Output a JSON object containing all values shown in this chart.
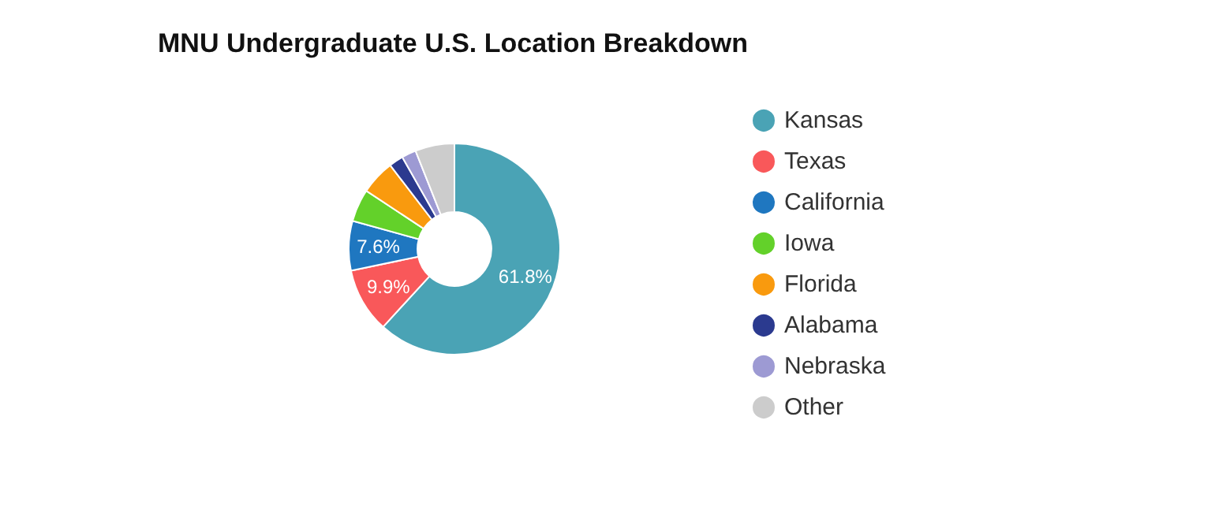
{
  "chart_data": {
    "type": "donut",
    "title": "MNU Undergraduate U.S. Location Breakdown",
    "categories": [
      "Kansas",
      "Texas",
      "California",
      "Iowa",
      "Florida",
      "Alabama",
      "Nebraska",
      "Other"
    ],
    "values": [
      61.8,
      9.9,
      7.6,
      5.0,
      5.3,
      2.2,
      2.2,
      6.0
    ],
    "colors": [
      "#4aa3b5",
      "#f9585a",
      "#1f77c0",
      "#63d12a",
      "#f99a0e",
      "#2b3a8f",
      "#9d9ad3",
      "#cccccc"
    ],
    "value_labels": [
      "61.8%",
      "9.9%",
      "7.6%",
      null,
      null,
      null,
      null,
      null
    ],
    "legend": "right"
  }
}
